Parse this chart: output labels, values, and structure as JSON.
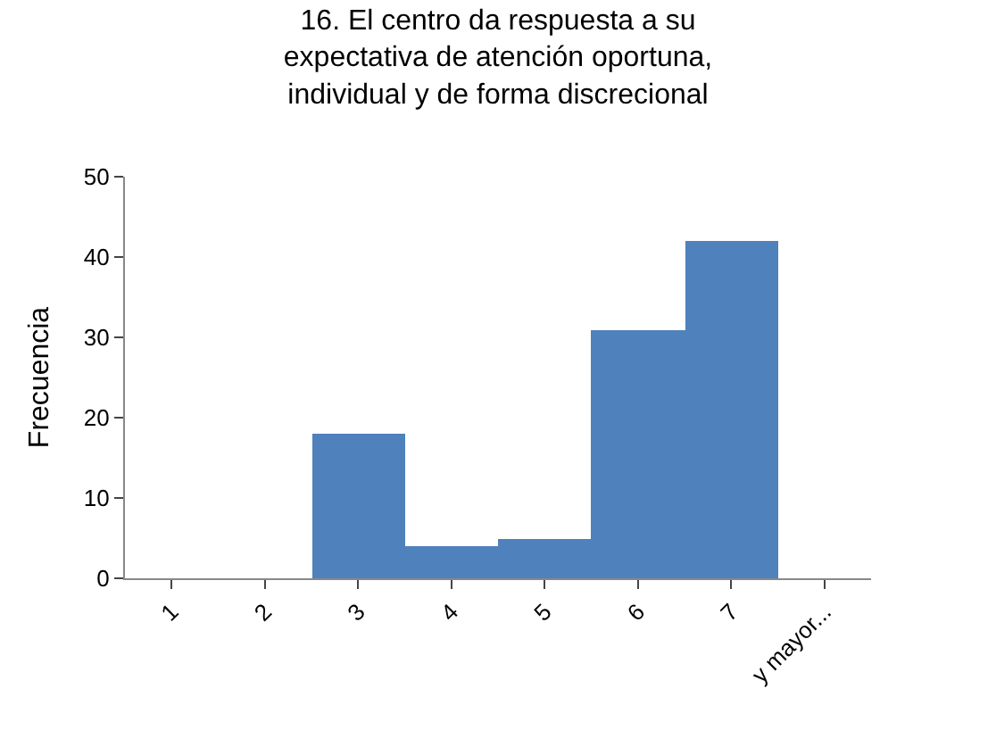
{
  "chart_data": {
    "type": "bar",
    "title": "16. El centro da respuesta a su\nexpectativa de atención oportuna,\nindividual y de forma discrecional",
    "ylabel": "Frecuencia",
    "categories": [
      "1",
      "2",
      "3",
      "4",
      "5",
      "6",
      "7",
      "y mayor..."
    ],
    "series": [
      {
        "color": "#4f81bd",
        "values": [
          0,
          0,
          18,
          4,
          5,
          31,
          42,
          0
        ]
      }
    ],
    "ylim": [
      0,
      50
    ],
    "yticks": [
      0,
      10,
      20,
      30,
      40,
      50
    ]
  }
}
